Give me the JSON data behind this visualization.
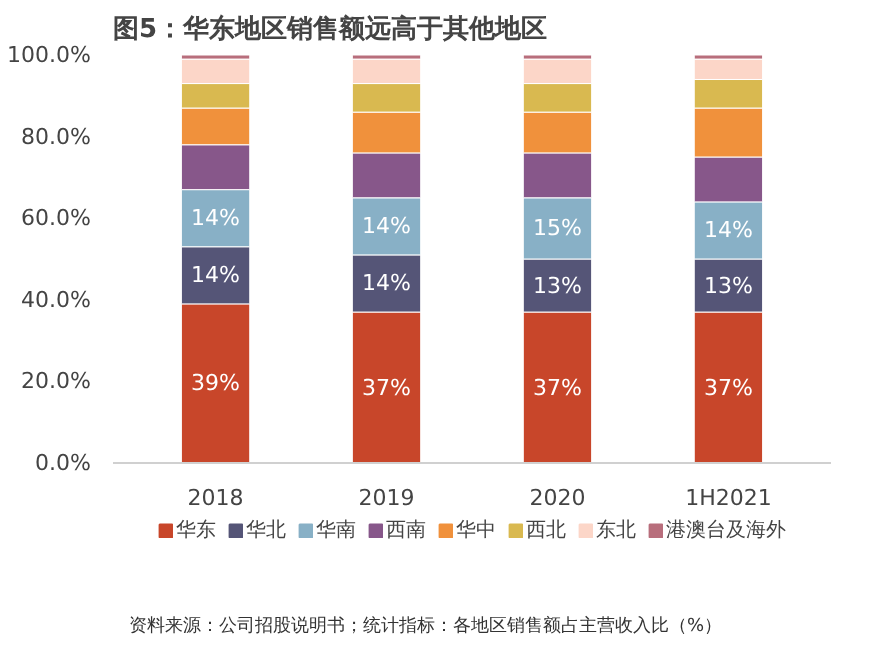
{
  "chart_data": {
    "type": "bar",
    "stacked": true,
    "title": "图5：华东地区销售额远高于其他地区",
    "categories": [
      "2018",
      "2019",
      "2020",
      "1H2021"
    ],
    "series": [
      {
        "name": "华东",
        "color": "#c8462a",
        "values": [
          39,
          37,
          37,
          37
        ],
        "value_labels": [
          "39%",
          "37%",
          "37%",
          "37%"
        ]
      },
      {
        "name": "华北",
        "color": "#555577",
        "values": [
          14,
          14,
          13,
          13
        ],
        "value_labels": [
          "14%",
          "14%",
          "13%",
          "13%"
        ]
      },
      {
        "name": "华南",
        "color": "#88b0c6",
        "values": [
          14,
          14,
          15,
          14
        ],
        "value_labels": [
          "14%",
          "14%",
          "15%",
          "14%"
        ]
      },
      {
        "name": "西南",
        "color": "#87578a",
        "values": [
          11,
          11,
          11,
          11
        ]
      },
      {
        "name": "华中",
        "color": "#f0913c",
        "values": [
          9,
          10,
          10,
          12
        ]
      },
      {
        "name": "西北",
        "color": "#d9b950",
        "values": [
          6,
          7,
          7,
          7
        ]
      },
      {
        "name": "东北",
        "color": "#fcd6c8",
        "values": [
          6,
          6,
          6,
          5
        ]
      },
      {
        "name": "港澳台及海外",
        "color": "#b86e7c",
        "values": [
          1,
          1,
          1,
          1
        ]
      }
    ],
    "ylim": [
      0,
      100
    ],
    "yticks": [
      {
        "value": 0,
        "label": "0.0%"
      },
      {
        "value": 20,
        "label": "20.0%"
      },
      {
        "value": 40,
        "label": "40.0%"
      },
      {
        "value": 60,
        "label": "60.0%"
      },
      {
        "value": 80,
        "label": "80.0%"
      },
      {
        "value": 100,
        "label": "100.0%"
      }
    ],
    "grid": false,
    "legend": "bottom",
    "annotations": [
      "资料来源：公司招股说明书；统计指标：各地区销售额占主营收入比（%）"
    ]
  }
}
